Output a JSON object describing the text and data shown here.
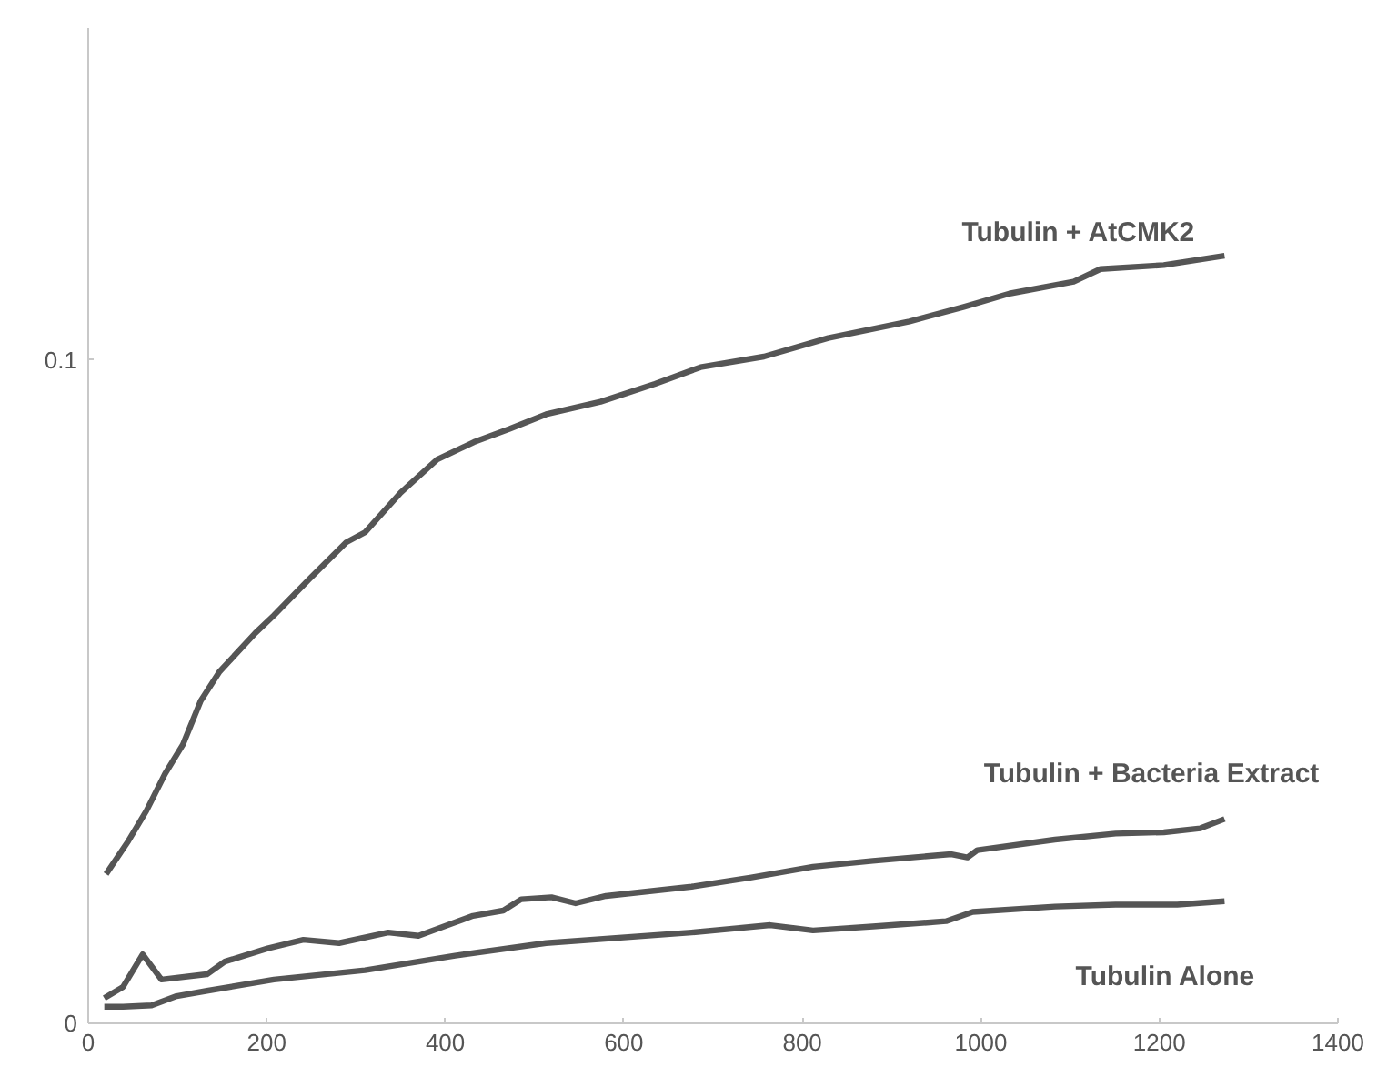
{
  "chart_data": {
    "type": "line",
    "xlim": [
      0,
      1400
    ],
    "xticks": [
      0,
      200,
      400,
      600,
      800,
      1000,
      1200,
      1400
    ],
    "ylim": [
      0,
      0.15
    ],
    "yticks": [
      0,
      0.1
    ],
    "series": [
      {
        "name": "Tubulin + AtCMK2",
        "color": "#555555",
        "x": [
          20,
          45,
          65,
          86,
          106,
          126,
          147,
          187,
          208,
          248,
          289,
          310,
          350,
          391,
          432,
          472,
          513,
          574,
          635,
          686,
          757,
          829,
          920,
          981,
          1032,
          1104,
          1134,
          1205,
          1273
        ],
        "values": [
          0.0225,
          0.0275,
          0.032,
          0.0376,
          0.042,
          0.0486,
          0.053,
          0.0588,
          0.0615,
          0.067,
          0.0725,
          0.074,
          0.08,
          0.085,
          0.0876,
          0.0896,
          0.0918,
          0.0937,
          0.0964,
          0.0989,
          0.1005,
          0.1033,
          0.1058,
          0.108,
          0.11,
          0.1118,
          0.1137,
          0.1143,
          0.1157
        ]
      },
      {
        "name": "Tubulin + Bacteria Extract",
        "color": "#555555",
        "x": [
          18,
          39,
          61,
          82,
          133,
          153,
          201,
          241,
          281,
          336,
          370,
          431,
          465,
          485,
          519,
          546,
          580,
          676,
          743,
          812,
          879,
          967,
          985,
          996,
          1083,
          1151,
          1205,
          1246,
          1273
        ],
        "values": [
          0.0038,
          0.0055,
          0.0104,
          0.0066,
          0.0074,
          0.0093,
          0.0113,
          0.0126,
          0.0121,
          0.0137,
          0.0132,
          0.0162,
          0.017,
          0.0187,
          0.019,
          0.0181,
          0.0192,
          0.0206,
          0.022,
          0.0236,
          0.0245,
          0.0255,
          0.025,
          0.0261,
          0.0277,
          0.0286,
          0.0288,
          0.0294,
          0.0308
        ]
      },
      {
        "name": "Tubulin Alone",
        "color": "#555555",
        "x": [
          18,
          39,
          71,
          99,
          133,
          208,
          310,
          411,
          513,
          676,
          764,
          812,
          879,
          961,
          991,
          1083,
          1151,
          1220,
          1273
        ],
        "values": [
          0.0025,
          0.0025,
          0.0027,
          0.0041,
          0.0049,
          0.0066,
          0.008,
          0.0102,
          0.0121,
          0.0137,
          0.0148,
          0.014,
          0.0146,
          0.0154,
          0.0168,
          0.0176,
          0.0179,
          0.0179,
          0.0184
        ]
      }
    ],
    "grid": false,
    "marker": "none",
    "line_style": "solid"
  }
}
